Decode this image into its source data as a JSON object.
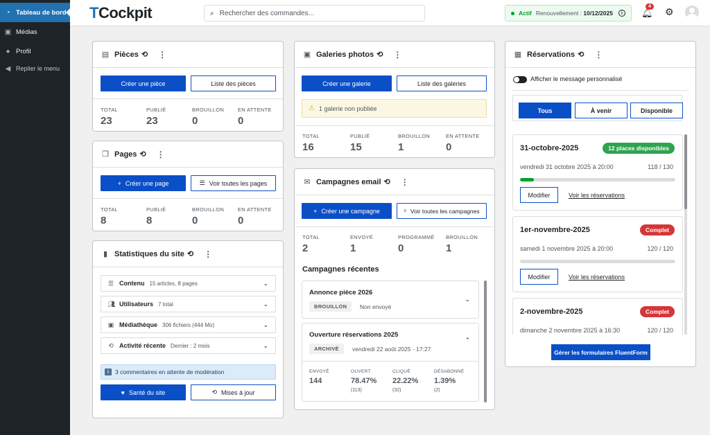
{
  "sidebar": {
    "items": [
      {
        "label": "Tableau de bord",
        "icon": "dashboard-icon"
      },
      {
        "label": "Médias",
        "icon": "media-icon"
      },
      {
        "label": "Profil",
        "icon": "user-icon"
      },
      {
        "label": "Replier le menu",
        "icon": "collapse-icon"
      }
    ]
  },
  "topbar": {
    "logo": "Cockpit",
    "logo_letter": "T",
    "search_placeholder": "Rechercher des commandes...",
    "status": "Actif",
    "renewal_label": "Renouvellement :",
    "renewal_date": "10/12/2025",
    "notif_count": "4"
  },
  "pieces": {
    "title": "Pièces",
    "create": "Créer une pièce",
    "list": "Liste des pièces",
    "stats": [
      {
        "label": "TOTAL",
        "value": "23"
      },
      {
        "label": "PUBLIÉ",
        "value": "23"
      },
      {
        "label": "BROUILLON",
        "value": "0"
      },
      {
        "label": "EN ATTENTE",
        "value": "0"
      }
    ]
  },
  "pages": {
    "title": "Pages",
    "create": "Créer une page",
    "list": "Voir toutes les pages",
    "stats": [
      {
        "label": "TOTAL",
        "value": "8"
      },
      {
        "label": "PUBLIÉ",
        "value": "8"
      },
      {
        "label": "BROUILLON",
        "value": "0"
      },
      {
        "label": "EN ATTENTE",
        "value": "0"
      }
    ]
  },
  "site_stats": {
    "title": "Statistiques du site",
    "rows": [
      {
        "label": "Contenu",
        "sub": "15 articles, 8 pages"
      },
      {
        "label": "Utilisateurs",
        "sub": "7 total"
      },
      {
        "label": "Médiathèque",
        "sub": "306 fichiers (444 Mo)"
      },
      {
        "label": "Activité récente",
        "sub": "Dernier : 2 mois"
      }
    ],
    "notice": "3 commentaires en attente de modération",
    "health": "Santé du site",
    "updates": "Mises à jour"
  },
  "galleries": {
    "title": "Galeries photos",
    "create": "Créer une galerie",
    "list": "Liste des galeries",
    "notice": "1 galerie non publiée",
    "stats": [
      {
        "label": "TOTAL",
        "value": "16"
      },
      {
        "label": "PUBLIÉ",
        "value": "15"
      },
      {
        "label": "BROUILLON",
        "value": "1"
      },
      {
        "label": "EN ATTENTE",
        "value": "0"
      }
    ]
  },
  "campaigns": {
    "title": "Campagnes email",
    "create": "Créer une campagne",
    "list": "Voir toutes les campagnes",
    "stats": [
      {
        "label": "TOTAL",
        "value": "2"
      },
      {
        "label": "ENVOYÉ",
        "value": "1"
      },
      {
        "label": "PROGRAMMÉ",
        "value": "0"
      },
      {
        "label": "BROUILLON",
        "value": "1"
      }
    ],
    "recent_title": "Campagnes récentes",
    "items": [
      {
        "title": "Annonce pièce 2026",
        "tag": "BROUILLON",
        "meta": "Non envoyé"
      },
      {
        "title": "Ouverture réservations 2025",
        "tag": "ARCHIVÉ",
        "meta": "vendredi 22 août 2025 - 17:27",
        "metrics": [
          {
            "label": "ENVOYÉ",
            "value": "144",
            "count": ""
          },
          {
            "label": "OUVERT",
            "value": "78.47%",
            "count": "(113)"
          },
          {
            "label": "CLIQUÉ",
            "value": "22.22%",
            "count": "(32)"
          },
          {
            "label": "DÉSABONNÉ",
            "value": "1.39%",
            "count": "(2)"
          }
        ]
      }
    ]
  },
  "reservations": {
    "title": "Réservations",
    "toggle_label": "Afficher le message personnalisé",
    "filters": [
      "Tous",
      "À venir",
      "Disponible"
    ],
    "events": [
      {
        "title": "31-octobre-2025",
        "badge": "12 places disponibles",
        "badge_color": "#2ea44f",
        "date": "vendredi 31 octobre 2025 à 20:00",
        "count": "118 / 130",
        "fill": 0.09,
        "edit": "Modifier",
        "link": "Voir les réservations"
      },
      {
        "title": "1er-novembre-2025",
        "badge": "Complet",
        "badge_color": "#d63638",
        "date": "samedi 1 novembre 2025 à 20:00",
        "count": "120 / 120",
        "fill": 0,
        "edit": "Modifier",
        "link": "Voir les réservations"
      },
      {
        "title": "2-novembre-2025",
        "badge": "Complet",
        "badge_color": "#d63638",
        "date": "dimanche 2 novembre 2025 à 16:30",
        "count": "120 / 120"
      }
    ],
    "fluent_button": "Gérer les formulaires FluentForm"
  }
}
